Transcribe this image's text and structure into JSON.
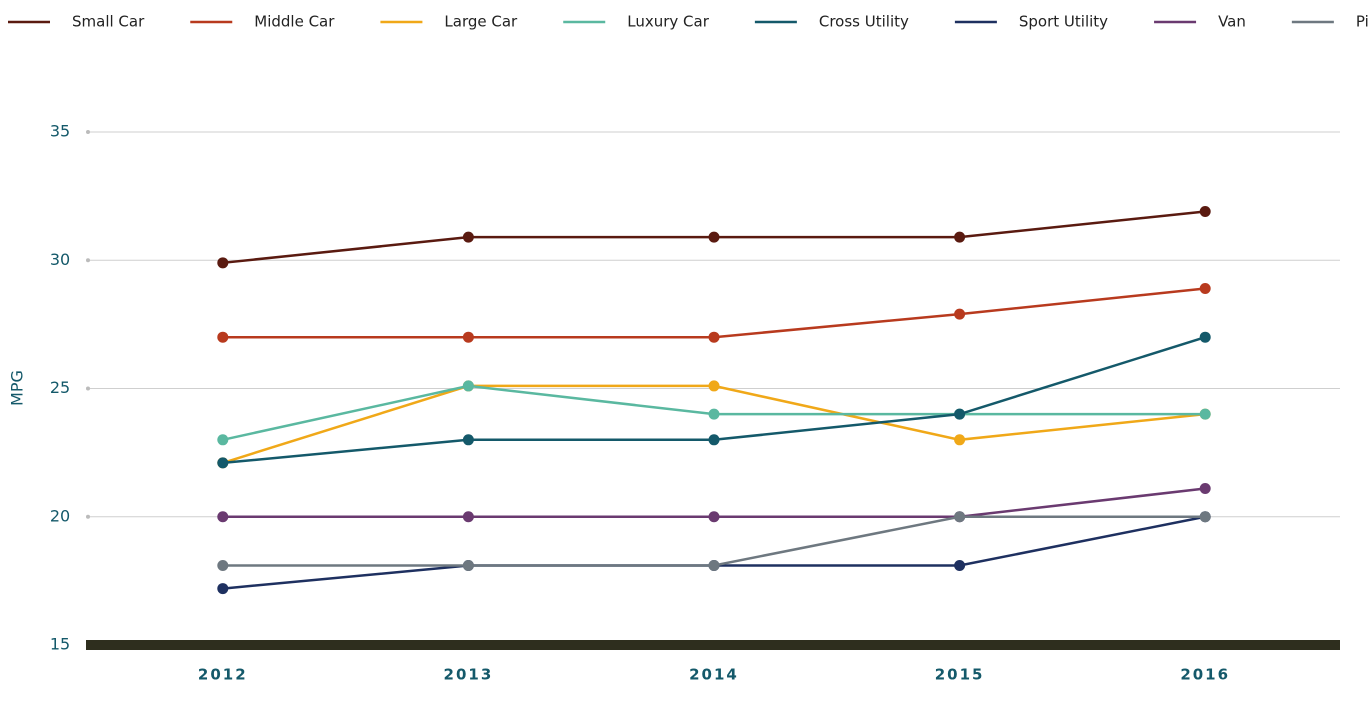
{
  "chart_data": {
    "type": "line",
    "ylabel": "MPG",
    "categories": [
      "2012",
      "2013",
      "2014",
      "2015",
      "2016"
    ],
    "series": [
      {
        "name": "Small Car",
        "color": "#5a1a10",
        "values": [
          29.9,
          30.9,
          30.9,
          30.9,
          31.9
        ]
      },
      {
        "name": "Middle Car",
        "color": "#b83a1e",
        "values": [
          27,
          27,
          27,
          27.9,
          28.9
        ]
      },
      {
        "name": "Large Car",
        "color": "#f0a818",
        "values": [
          22.1,
          25.1,
          25.1,
          23,
          24
        ]
      },
      {
        "name": "Luxury Car",
        "color": "#5ab8a0",
        "values": [
          23,
          25.1,
          24,
          24,
          24
        ]
      },
      {
        "name": "Cross Utility",
        "color": "#14596a",
        "values": [
          22.1,
          23,
          23,
          24,
          27
        ]
      },
      {
        "name": "Sport Utility",
        "color": "#1e3060",
        "values": [
          17.2,
          18.1,
          18.1,
          18.1,
          20
        ]
      },
      {
        "name": "Van",
        "color": "#6a3a70",
        "values": [
          20,
          20,
          20,
          20,
          21.1
        ]
      },
      {
        "name": "Pickup",
        "color": "#6e7880",
        "values": [
          18.1,
          18.1,
          18.1,
          20,
          20
        ]
      }
    ],
    "ylim": [
      15,
      35
    ],
    "yticks": [
      15,
      20,
      25,
      30,
      35
    ],
    "grid": true,
    "legend": "top"
  }
}
